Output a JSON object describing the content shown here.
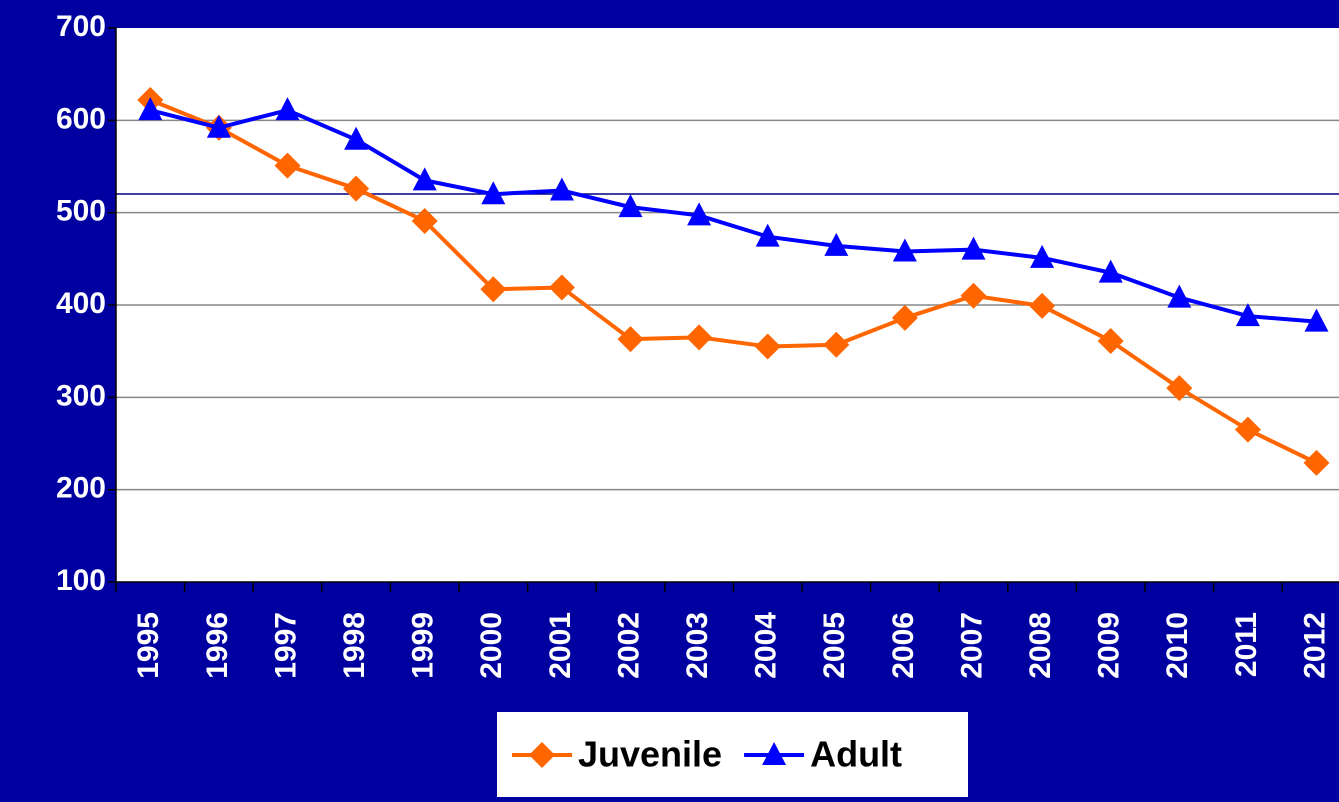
{
  "chart_data": {
    "type": "line",
    "categories": [
      "1995",
      "1996",
      "1997",
      "1998",
      "1999",
      "2000",
      "2001",
      "2002",
      "2003",
      "2004",
      "2005",
      "2006",
      "2007",
      "2008",
      "2009",
      "2010",
      "2011",
      "2012"
    ],
    "series": [
      {
        "name": "Juvenile",
        "color": "#ff6600",
        "marker": "diamond",
        "values": [
          622,
          592,
          551,
          526,
          491,
          417,
          419,
          363,
          365,
          355,
          357,
          386,
          410,
          399,
          361,
          310,
          265,
          229
        ]
      },
      {
        "name": "Adult",
        "color": "#0000ff",
        "marker": "triangle",
        "values": [
          611,
          592,
          611,
          579,
          535,
          520,
          524,
          506,
          497,
          474,
          464,
          458,
          460,
          451,
          435,
          408,
          388,
          382
        ]
      }
    ],
    "ylim": [
      100,
      700
    ],
    "yticks": [
      100,
      200,
      300,
      400,
      500,
      600,
      700
    ],
    "grid": true,
    "legend": "bottom"
  }
}
